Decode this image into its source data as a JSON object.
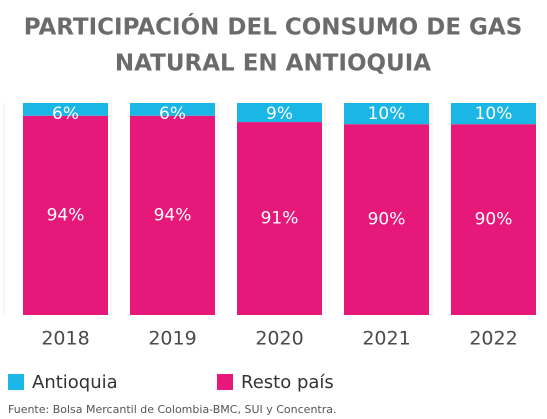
{
  "chart_data": {
    "type": "stacked_bar",
    "title": [
      "PARTICIPACIÓN DEL CONSUMO DE GAS",
      "NATURAL EN ANTIOQUIA"
    ],
    "categories": [
      "2018",
      "2019",
      "2020",
      "2021",
      "2022"
    ],
    "series": [
      {
        "name": "Antioquia",
        "color": "#1ab7e6",
        "values": [
          6,
          6,
          9,
          10,
          10
        ],
        "value_labels": [
          "6%",
          "6%",
          "9%",
          "10%",
          "10%"
        ]
      },
      {
        "name": "Resto país",
        "color": "#e6197a",
        "values": [
          94,
          94,
          91,
          90,
          90
        ],
        "value_labels": [
          "94%",
          "94%",
          "91%",
          "90%",
          "90%"
        ]
      }
    ],
    "source": "Fuente: Bolsa Mercantil de Colombia-BMC, SUI y Concentra."
  }
}
